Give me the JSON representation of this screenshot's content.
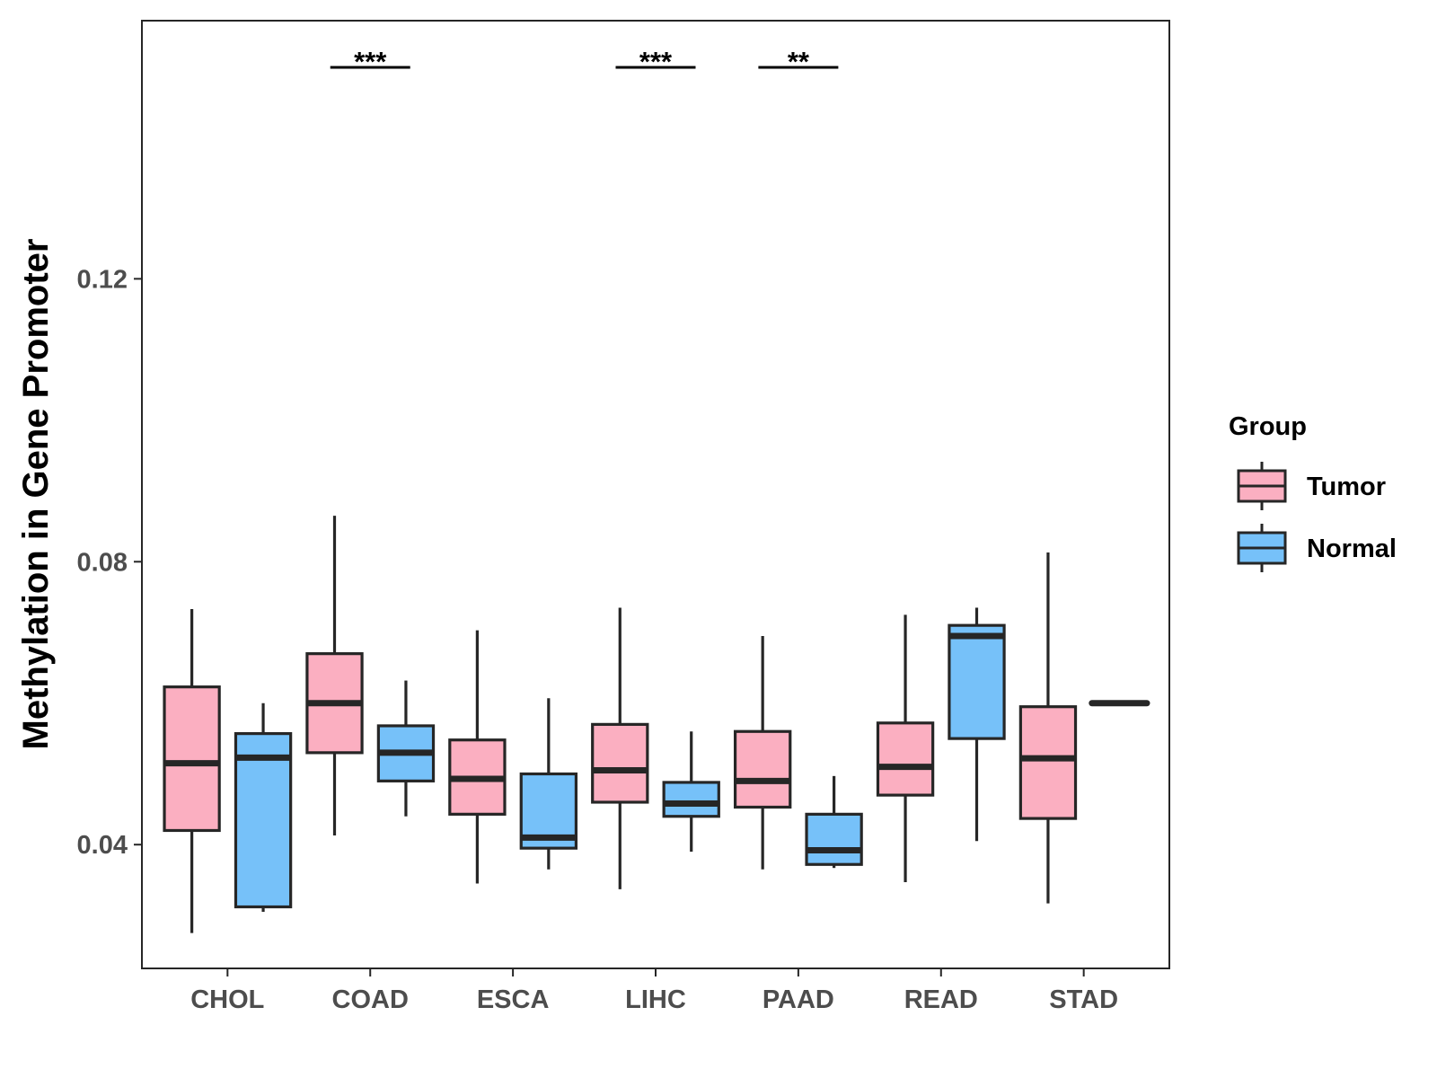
{
  "chart_data": {
    "type": "boxplot",
    "title": "",
    "xlabel": "",
    "ylabel": "Methylation in Gene Promoter",
    "ylim": [
      0.0225,
      0.1565
    ],
    "yticks": [
      0.04,
      0.08,
      0.12
    ],
    "ytick_labels": [
      "0.04",
      "0.08",
      "0.12"
    ],
    "categories": [
      "CHOL",
      "COAD",
      "ESCA",
      "LIHC",
      "PAAD",
      "READ",
      "STAD"
    ],
    "legend": {
      "title": "Group",
      "position": "right",
      "entries": [
        "Tumor",
        "Normal"
      ]
    },
    "colors": {
      "Tumor": "#FBAFC1",
      "Normal": "#76C1F9",
      "outline": "#262626"
    },
    "series": [
      {
        "name": "Tumor",
        "boxes": [
          {
            "category": "CHOL",
            "min": 0.0275,
            "q1": 0.042,
            "median": 0.0515,
            "q3": 0.0623,
            "max": 0.0733
          },
          {
            "category": "COAD",
            "min": 0.0413,
            "q1": 0.053,
            "median": 0.06,
            "q3": 0.067,
            "max": 0.0865
          },
          {
            "category": "ESCA",
            "min": 0.0345,
            "q1": 0.0443,
            "median": 0.0493,
            "q3": 0.0548,
            "max": 0.0703
          },
          {
            "category": "LIHC",
            "min": 0.0337,
            "q1": 0.046,
            "median": 0.0505,
            "q3": 0.057,
            "max": 0.0735
          },
          {
            "category": "PAAD",
            "min": 0.0365,
            "q1": 0.0453,
            "median": 0.049,
            "q3": 0.056,
            "max": 0.0695
          },
          {
            "category": "READ",
            "min": 0.0347,
            "q1": 0.047,
            "median": 0.051,
            "q3": 0.0572,
            "max": 0.0725
          },
          {
            "category": "STAD",
            "min": 0.0317,
            "q1": 0.0437,
            "median": 0.0522,
            "q3": 0.0595,
            "max": 0.0813
          }
        ]
      },
      {
        "name": "Normal",
        "boxes": [
          {
            "category": "CHOL",
            "min": 0.0305,
            "q1": 0.0312,
            "median": 0.0523,
            "q3": 0.0557,
            "max": 0.06
          },
          {
            "category": "COAD",
            "min": 0.044,
            "q1": 0.049,
            "median": 0.053,
            "q3": 0.0568,
            "max": 0.0632
          },
          {
            "category": "ESCA",
            "min": 0.0365,
            "q1": 0.0395,
            "median": 0.041,
            "q3": 0.05,
            "max": 0.0607
          },
          {
            "category": "LIHC",
            "min": 0.039,
            "q1": 0.044,
            "median": 0.0458,
            "q3": 0.0488,
            "max": 0.056
          },
          {
            "category": "PAAD",
            "min": 0.0367,
            "q1": 0.0372,
            "median": 0.0392,
            "q3": 0.0443,
            "max": 0.0497
          },
          {
            "category": "READ",
            "min": 0.0405,
            "q1": 0.055,
            "median": 0.0695,
            "q3": 0.071,
            "max": 0.0735
          },
          {
            "category": "STAD",
            "min": 0.06,
            "q1": 0.06,
            "median": 0.06,
            "q3": 0.06,
            "max": 0.06
          }
        ]
      }
    ],
    "annotations": [
      {
        "category": "COAD",
        "label": "***"
      },
      {
        "category": "LIHC",
        "label": "***"
      },
      {
        "category": "PAAD",
        "label": "**"
      }
    ]
  }
}
